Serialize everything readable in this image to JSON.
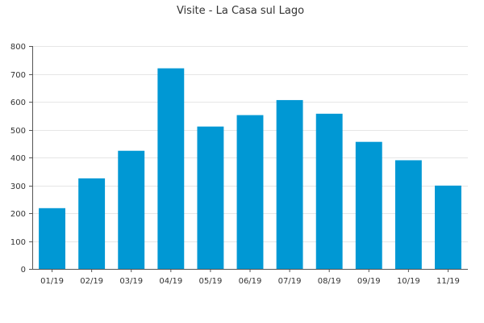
{
  "chart_data": {
    "type": "bar",
    "title": "Visite - La Casa sul Lago",
    "categories": [
      "01/19",
      "02/19",
      "03/19",
      "04/19",
      "05/19",
      "06/19",
      "07/19",
      "08/19",
      "09/19",
      "10/19",
      "11/19"
    ],
    "values": [
      218,
      325,
      424,
      720,
      511,
      552,
      606,
      557,
      456,
      390,
      299
    ],
    "ylim": [
      0,
      800
    ],
    "yticks": [
      0,
      100,
      200,
      300,
      400,
      500,
      600,
      700,
      800
    ],
    "xlabel": "",
    "ylabel": "",
    "grid": true,
    "bar_color": "#0098d4",
    "legend": "none"
  }
}
